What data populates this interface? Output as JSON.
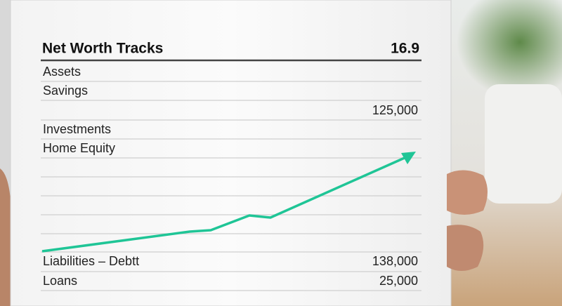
{
  "header": {
    "title": "Net Worth Tracks",
    "value": "16.9"
  },
  "rows": [
    {
      "label": "Assets"
    },
    {
      "label": "Savings"
    },
    {
      "amount": "125,000"
    },
    {
      "label": "Investments"
    },
    {
      "label": "Home Equity"
    },
    {
      "label": "Liabilities – Debtt",
      "amount": "138,000"
    },
    {
      "label": "Loans",
      "amount": "25,000"
    }
  ]
}
